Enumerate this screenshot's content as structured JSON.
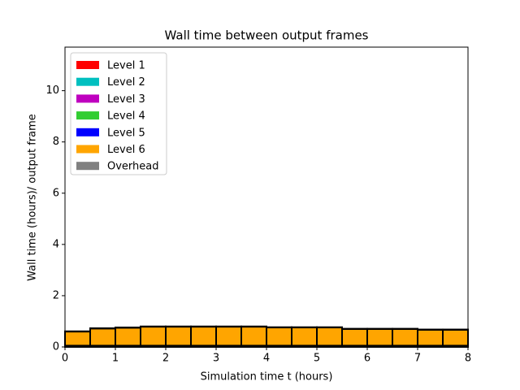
{
  "chart_data": {
    "type": "stacked_histogram",
    "title": "Wall time between output frames",
    "x_label": "Simulation time t (hours)",
    "y_label": "Wall time (hours)/ output frame",
    "bins": [
      0,
      0.5,
      1,
      1.5,
      2,
      2.5,
      3,
      3.5,
      4,
      4.5,
      5,
      5.5,
      6,
      6.5,
      7,
      7.5,
      8
    ],
    "series": [
      {
        "name": "Level 1",
        "color": "#ff0000",
        "values": [
          0.01,
          0.01,
          0.01,
          0.01,
          0.01,
          0.01,
          0.01,
          0.01,
          0.01,
          0.01,
          0.01,
          0.01,
          0.01,
          0.01,
          0.01,
          0.01
        ]
      },
      {
        "name": "Level 2",
        "color": "#00bfbf",
        "values": [
          0.01,
          0.01,
          0.01,
          0.01,
          0.01,
          0.01,
          0.01,
          0.01,
          0.01,
          0.01,
          0.01,
          0.01,
          0.01,
          0.01,
          0.01,
          0.01
        ]
      },
      {
        "name": "Level 3",
        "color": "#bf00bf",
        "values": [
          0.01,
          0.01,
          0.01,
          0.01,
          0.01,
          0.01,
          0.01,
          0.01,
          0.01,
          0.01,
          0.01,
          0.01,
          0.01,
          0.01,
          0.01,
          0.01
        ]
      },
      {
        "name": "Level 4",
        "color": "#32cd32",
        "values": [
          0.01,
          0.01,
          0.01,
          0.01,
          0.01,
          0.01,
          0.01,
          0.01,
          0.01,
          0.01,
          0.01,
          0.01,
          0.01,
          0.01,
          0.01,
          0.01
        ]
      },
      {
        "name": "Level 5",
        "color": "#0000ff",
        "values": [
          0.01,
          0.01,
          0.01,
          0.01,
          0.01,
          0.01,
          0.01,
          0.01,
          0.01,
          0.01,
          0.01,
          0.01,
          0.01,
          0.01,
          0.01,
          0.01
        ]
      },
      {
        "name": "Level 6",
        "color": "#ffa500",
        "values": [
          0.55,
          0.67,
          0.7,
          0.74,
          0.74,
          0.74,
          0.74,
          0.74,
          0.71,
          0.71,
          0.71,
          0.65,
          0.65,
          0.65,
          0.62,
          0.62
        ]
      },
      {
        "name": "Overhead",
        "color": "#808080",
        "values": [
          0.01,
          0.01,
          0.01,
          0.01,
          0.01,
          0.01,
          0.01,
          0.01,
          0.01,
          0.01,
          0.01,
          0.01,
          0.01,
          0.01,
          0.01,
          0.01
        ]
      }
    ],
    "xlim": [
      0,
      8
    ],
    "ylim": [
      0,
      11.7
    ],
    "xticks": [
      0,
      1,
      2,
      3,
      4,
      5,
      6,
      7,
      8
    ],
    "yticks": [
      0,
      2,
      4,
      6,
      8,
      10
    ],
    "legend": "upper left"
  }
}
